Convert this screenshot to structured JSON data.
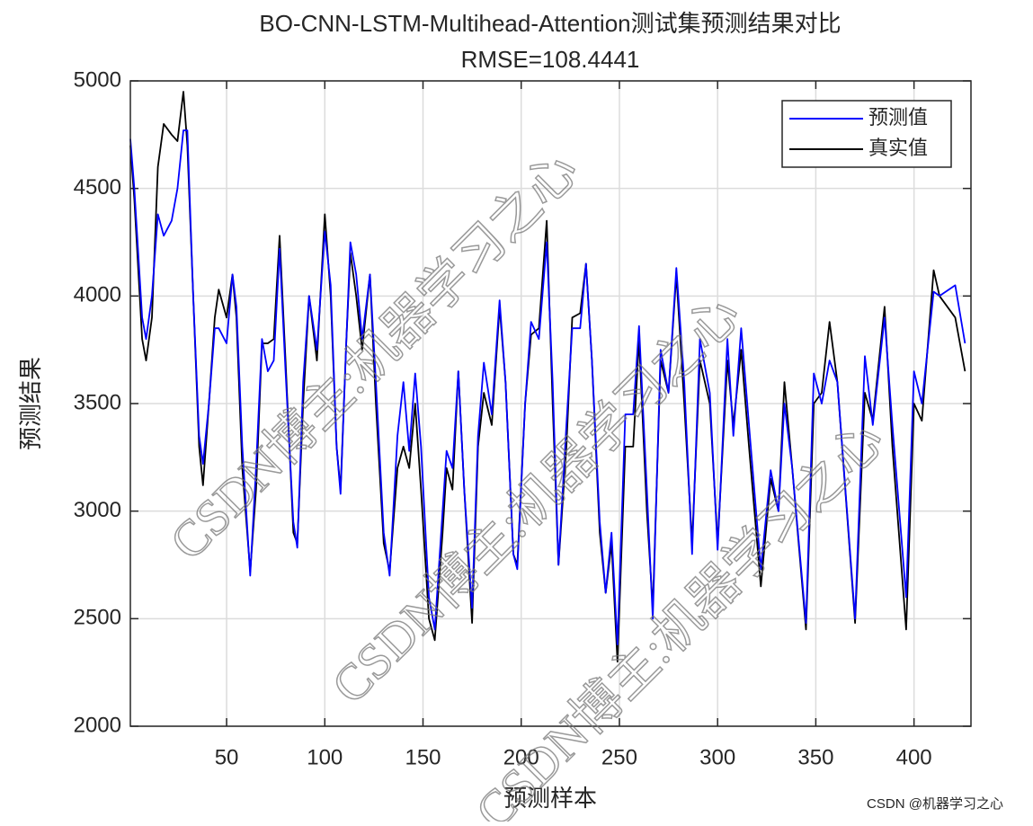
{
  "chart_data": {
    "type": "line",
    "title": "BO-CNN-LSTM-Multihead-Attention测试集预测结果对比",
    "subtitle": "RMSE=108.4441",
    "xlabel": "预测样本",
    "ylabel": "预测结果",
    "x": [
      1,
      3,
      7,
      9,
      12,
      15,
      18,
      22,
      25,
      28,
      30,
      33,
      36,
      38,
      41,
      44,
      46,
      50,
      53,
      55,
      58,
      62,
      65,
      68,
      71,
      74,
      77,
      80,
      84,
      86,
      89,
      92,
      96,
      100,
      103,
      106,
      108,
      111,
      113,
      116,
      119,
      123,
      126,
      130,
      133,
      137,
      140,
      143,
      146,
      149,
      153,
      156,
      160,
      162,
      165,
      168,
      171,
      175,
      178,
      181,
      185,
      189,
      192,
      196,
      198,
      202,
      205,
      209,
      213,
      216,
      219,
      223,
      226,
      230,
      233,
      236,
      240,
      243,
      246,
      249,
      253,
      257,
      260,
      264,
      267,
      271,
      275,
      279,
      283,
      287,
      291,
      296,
      300,
      305,
      308,
      312,
      316,
      322,
      327,
      331,
      334,
      338,
      345,
      349,
      353,
      357,
      361,
      370,
      375,
      379,
      385,
      389,
      396,
      400,
      404,
      410,
      413,
      421,
      426
    ],
    "series": [
      {
        "name": "预测值",
        "color": "#0000ff",
        "values": [
          4730,
          4500,
          3900,
          3800,
          4000,
          4380,
          4280,
          4350,
          4500,
          4770,
          4770,
          4000,
          3350,
          3220,
          3500,
          3850,
          3850,
          3780,
          4100,
          3950,
          3300,
          2700,
          3200,
          3800,
          3650,
          3700,
          4220,
          3650,
          2950,
          2830,
          3600,
          4000,
          3750,
          4300,
          4050,
          3300,
          3080,
          3800,
          4250,
          4100,
          3800,
          4100,
          3600,
          2900,
          2700,
          3350,
          3600,
          3280,
          3640,
          3300,
          2600,
          2450,
          3000,
          3280,
          3200,
          3650,
          3100,
          2550,
          3350,
          3690,
          3450,
          3980,
          3600,
          2800,
          2730,
          3500,
          3880,
          3800,
          4250,
          3600,
          2750,
          3400,
          3850,
          3850,
          4150,
          3700,
          2950,
          2620,
          2900,
          2380,
          3450,
          3450,
          3860,
          3100,
          2500,
          3750,
          3550,
          4130,
          3600,
          2800,
          3800,
          3550,
          2820,
          3800,
          3350,
          3850,
          3400,
          2730,
          3190,
          3000,
          3500,
          3200,
          2480,
          3640,
          3500,
          3700,
          3600,
          2500,
          3720,
          3400,
          3900,
          3400,
          2600,
          3650,
          3500,
          4020,
          4000,
          4050,
          3780
        ]
      },
      {
        "name": "真实值",
        "color": "#000000",
        "values": [
          4700,
          4450,
          3800,
          3700,
          3900,
          4600,
          4800,
          4750,
          4720,
          4950,
          4700,
          4000,
          3300,
          3120,
          3500,
          3900,
          4030,
          3900,
          4100,
          3900,
          3200,
          2720,
          3100,
          3780,
          3780,
          3800,
          4280,
          3700,
          2900,
          2850,
          3500,
          4000,
          3700,
          4380,
          4000,
          3300,
          3100,
          3800,
          4200,
          4000,
          3750,
          4100,
          3500,
          2850,
          2720,
          3200,
          3300,
          3200,
          3500,
          3100,
          2500,
          2400,
          2900,
          3200,
          3100,
          3650,
          3100,
          2480,
          3300,
          3550,
          3400,
          3950,
          3600,
          2800,
          2750,
          3500,
          3820,
          3850,
          4350,
          3500,
          2750,
          3300,
          3900,
          3920,
          4150,
          3700,
          2900,
          2620,
          2850,
          2300,
          3300,
          3300,
          3800,
          3000,
          2550,
          3700,
          3550,
          4100,
          3500,
          2850,
          3700,
          3500,
          2850,
          3700,
          3400,
          3750,
          3300,
          2650,
          3150,
          3000,
          3600,
          3200,
          2450,
          3500,
          3550,
          3880,
          3600,
          2480,
          3550,
          3420,
          3950,
          3300,
          2450,
          3500,
          3420,
          4120,
          4000,
          3900,
          3650
        ]
      }
    ],
    "xlim": [
      1,
      429
    ],
    "ylim": [
      2000,
      5000
    ],
    "xticks": [
      50,
      100,
      150,
      200,
      250,
      300,
      350,
      400
    ],
    "yticks": [
      2000,
      2500,
      3000,
      3500,
      4000,
      4500,
      5000
    ],
    "grid": true,
    "legend": "upper right"
  },
  "watermark": "CSDN博主:机器学习之心",
  "footer": "CSDN @机器学习之心"
}
